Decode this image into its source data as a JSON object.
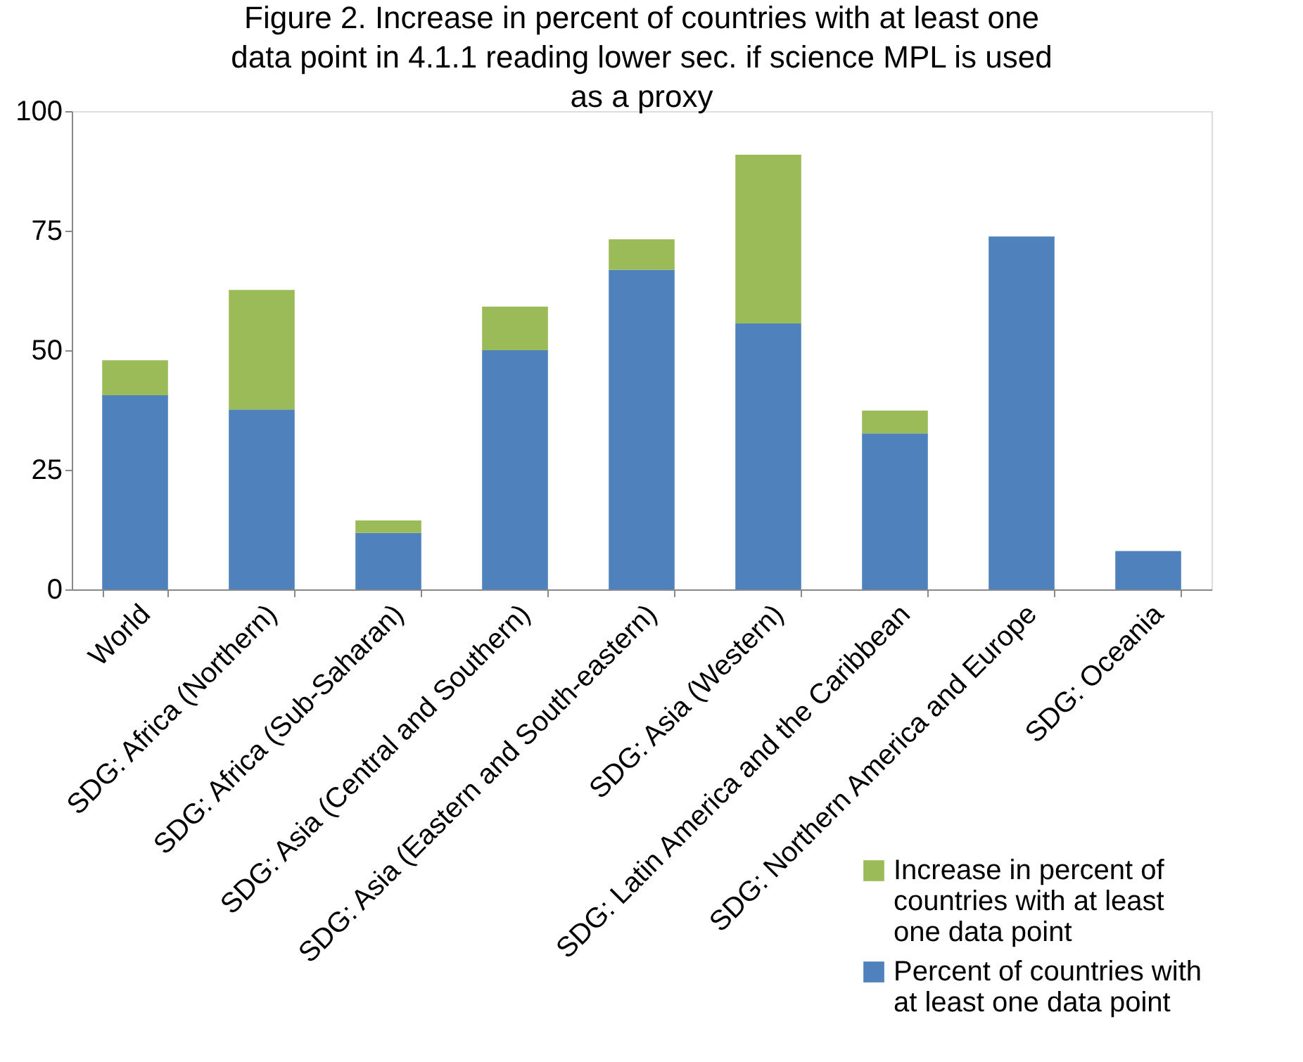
{
  "chart_data": {
    "type": "bar",
    "stacked": true,
    "title": "Figure 2. Increase in percent of countries with at least one data point in 4.1.1 reading lower sec. if science MPL is used as a proxy",
    "categories": [
      "World",
      "SDG: Africa (Northern)",
      "SDG: Africa (Sub-Saharan)",
      "SDG: Asia (Central and Southern)",
      "SDG: Asia (Eastern and South-eastern)",
      "SDG: Asia (Western)",
      "SDG: Latin America and the Caribbean",
      "SDG: Northern America and Europe",
      "SDG: Oceania"
    ],
    "series": [
      {
        "name": "Percent of countries with at least one data point",
        "color": "#4f81bd",
        "values": [
          40.6,
          37.6,
          11.8,
          50.0,
          66.8,
          55.6,
          32.6,
          73.8,
          8.0
        ]
      },
      {
        "name": "Increase in percent of countries with at least one data point",
        "color": "#9bbb59",
        "values": [
          7.3,
          25.0,
          2.6,
          9.1,
          6.4,
          35.3,
          4.8,
          0,
          0
        ]
      }
    ],
    "ylim": [
      0,
      100
    ],
    "yticks": [
      0,
      25,
      50,
      75,
      100
    ],
    "grid": false,
    "legend": "bottom right"
  }
}
